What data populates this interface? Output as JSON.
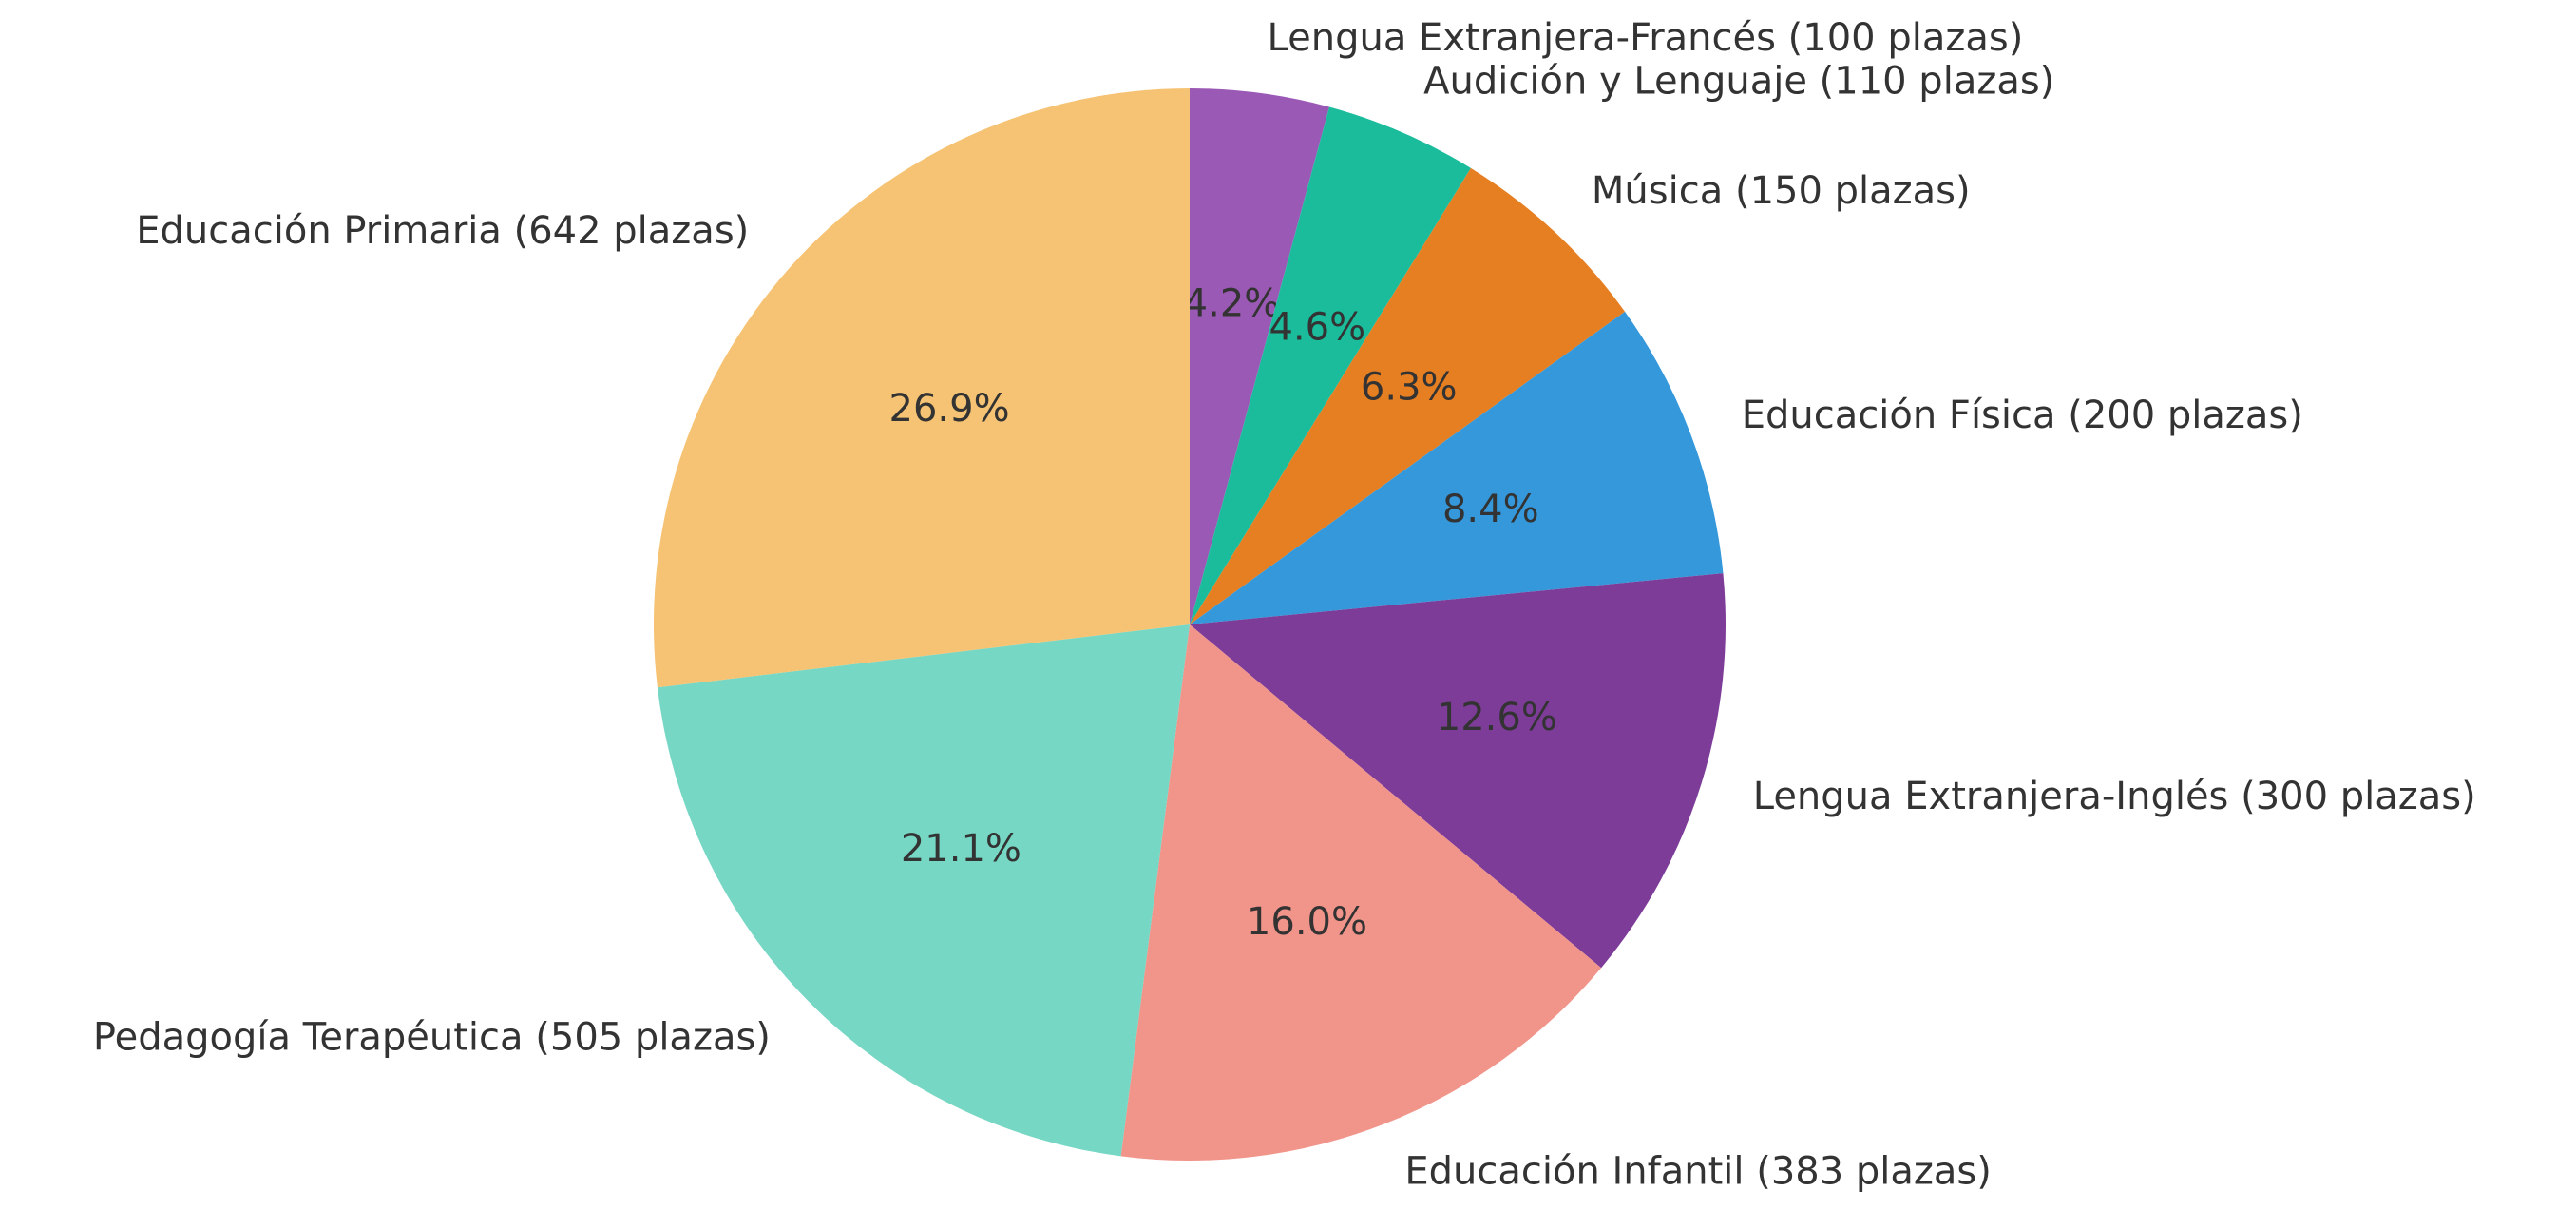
{
  "chart_data": {
    "type": "pie",
    "categories": [
      "Lengua Extranjera-Francés (100 plazas)",
      "Audición y Lenguaje (110 plazas)",
      "Música (150 plazas)",
      "Educación Física (200 plazas)",
      "Lengua Extranjera-Inglés (300 plazas)",
      "Educación Infantil (383 plazas)",
      "Pedagogía Terapéutica (505 plazas)",
      "Educación Primaria (642 plazas)"
    ],
    "values": [
      4.2,
      4.6,
      6.3,
      8.4,
      12.6,
      16,
      21.1,
      26.9
    ],
    "value_labels": [
      "4.2%",
      "4.6%",
      "6.3%",
      "8.4%",
      "12.6%",
      "16.0%",
      "21.1%",
      "26.9%"
    ],
    "colors": [
      "#9b59b6",
      "#1abc9c",
      "#e67e22",
      "#3498db",
      "#7d3c98",
      "#f1948a",
      "#76d7c4",
      "#f5c373"
    ]
  }
}
